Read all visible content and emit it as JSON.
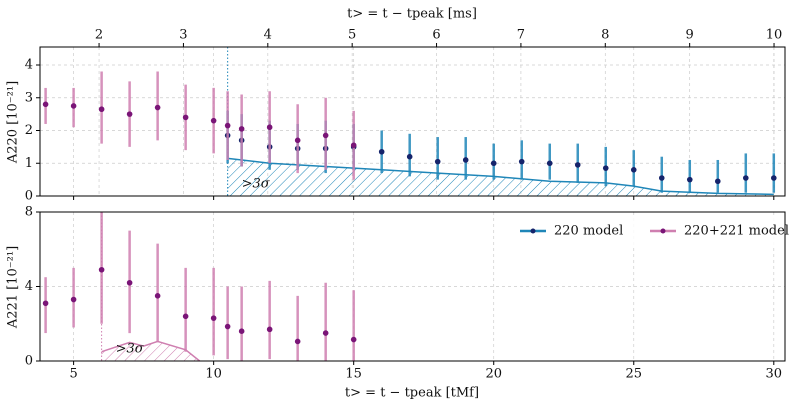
{
  "chart_data": [
    {
      "type": "errorbar",
      "ylabel": "A220 [10⁻²¹]",
      "x2label": "t> = t − tpeak [ms]",
      "xlim": [
        3.8,
        30.4
      ],
      "xticks": [
        5,
        10,
        15,
        20,
        25,
        30
      ],
      "x2lim": [
        1.3,
        10.13
      ],
      "x2ticks": [
        2,
        3,
        4,
        5,
        6,
        7,
        8,
        9,
        10
      ],
      "ylim": [
        0,
        4.55
      ],
      "yticks": [
        0,
        1,
        2,
        3,
        4
      ],
      "grid": true,
      "cutoff": 10.5,
      "series": [
        {
          "name": "220 model",
          "color": "#1f86b8",
          "marker_color": "#16246b",
          "x": [
            10.5,
            11,
            12,
            13,
            14,
            15,
            16,
            17,
            18,
            19,
            20,
            21,
            22,
            23,
            24,
            25,
            26,
            27,
            28,
            29,
            30
          ],
          "values": [
            1.85,
            1.7,
            1.5,
            1.45,
            1.45,
            1.5,
            1.35,
            1.2,
            1.05,
            1.1,
            1.0,
            1.05,
            1.0,
            0.95,
            0.85,
            0.8,
            0.55,
            0.5,
            0.45,
            0.55,
            0.55
          ],
          "lower": [
            1.0,
            0.9,
            0.8,
            0.8,
            0.7,
            0.8,
            0.7,
            0.6,
            0.5,
            0.5,
            0.5,
            0.5,
            0.5,
            0.4,
            0.3,
            0.3,
            0.1,
            0.1,
            0.1,
            0.1,
            0.1
          ],
          "upper": [
            2.6,
            2.5,
            2.3,
            2.2,
            2.3,
            2.2,
            2.0,
            1.9,
            1.8,
            1.8,
            1.6,
            1.7,
            1.6,
            1.6,
            1.5,
            1.4,
            1.2,
            1.1,
            1.1,
            1.3,
            1.3
          ]
        },
        {
          "name": "220+221 model",
          "color": "#cf7fb0",
          "marker_color": "#7a1577",
          "x": [
            4,
            5,
            6,
            7,
            8,
            9,
            10,
            10.5,
            11,
            12,
            13,
            14,
            15
          ],
          "values": [
            2.8,
            2.75,
            2.65,
            2.5,
            2.7,
            2.4,
            2.3,
            2.15,
            2.05,
            2.1,
            1.7,
            1.85,
            1.55
          ],
          "lower": [
            2.2,
            2.1,
            1.6,
            1.5,
            1.7,
            1.4,
            1.3,
            1.1,
            0.9,
            1.0,
            0.7,
            0.8,
            0.5
          ],
          "upper": [
            3.3,
            3.3,
            3.8,
            3.5,
            3.8,
            3.4,
            3.3,
            3.2,
            3.1,
            3.2,
            2.8,
            3.0,
            2.6
          ]
        }
      ],
      "threshold": {
        "label": ">3σ",
        "color": "#1f86b8",
        "x": [
          10.5,
          12,
          14,
          16,
          18,
          20,
          22,
          24,
          25,
          26,
          28,
          30
        ],
        "values": [
          1.15,
          1.0,
          0.9,
          0.8,
          0.7,
          0.6,
          0.45,
          0.4,
          0.3,
          0.15,
          0.08,
          0.05
        ]
      }
    },
    {
      "type": "errorbar",
      "ylabel": "A221 [10⁻²¹]",
      "xlabel": "t> = t − tpeak [tMf]",
      "xlim": [
        3.8,
        30.4
      ],
      "xticks": [
        5,
        10,
        15,
        20,
        25,
        30
      ],
      "ylim": [
        0,
        8
      ],
      "yticks": [
        0,
        4,
        8
      ],
      "grid": true,
      "cutoff": 6,
      "legend": "upper right",
      "series": [
        {
          "color": "#cf7fb0",
          "marker_color": "#7a1577",
          "x": [
            4,
            5,
            6,
            7,
            8,
            9,
            10,
            10.5,
            11,
            12,
            13,
            14,
            15
          ],
          "values": [
            3.1,
            3.3,
            4.9,
            4.2,
            3.5,
            2.4,
            2.3,
            1.85,
            1.6,
            1.7,
            1.05,
            1.5,
            1.15
          ],
          "lower": [
            1.5,
            1.8,
            2.0,
            1.5,
            1.0,
            0.5,
            0.3,
            0.1,
            0,
            0.1,
            0,
            0,
            0
          ],
          "upper": [
            4.5,
            5.0,
            8.0,
            7.0,
            6.3,
            5.0,
            5.0,
            4.0,
            4.0,
            4.3,
            3.5,
            4.2,
            3.8
          ]
        }
      ],
      "threshold": {
        "label": ">3σ",
        "color": "#cf7fb0",
        "x": [
          6,
          7,
          7.5,
          8,
          9,
          9.5
        ],
        "values": [
          0.5,
          1.0,
          0.8,
          1.05,
          0.6,
          0
        ]
      }
    }
  ]
}
